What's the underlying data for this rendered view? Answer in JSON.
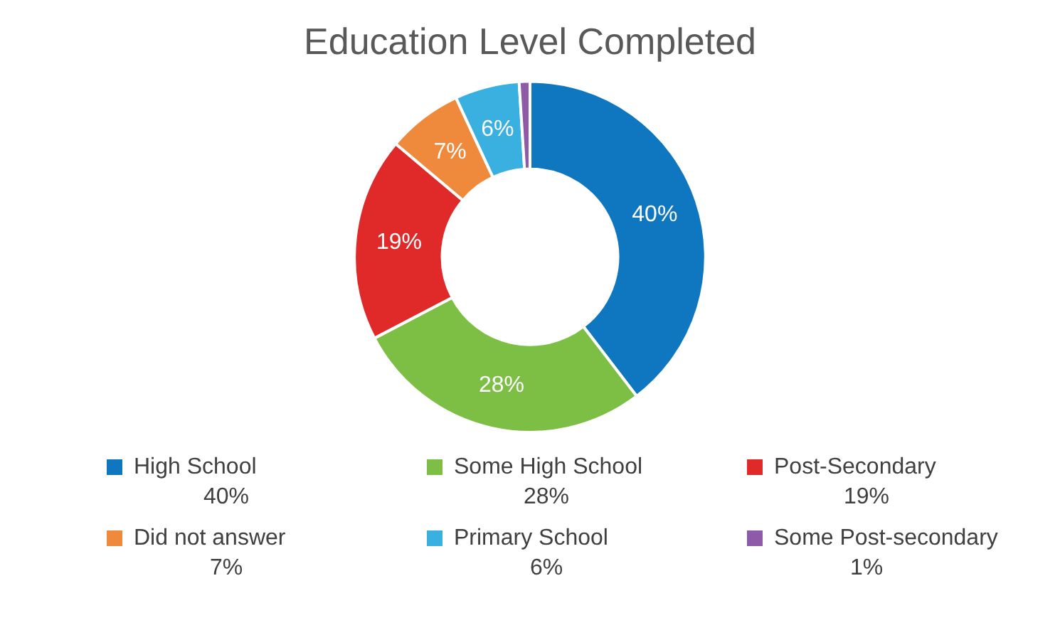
{
  "chart_data": {
    "type": "donut",
    "title": "Education Level Completed",
    "categories": [
      "High School",
      "Some High School",
      "Post-Secondary",
      "Did not answer",
      "Primary School",
      "Some Post-secondary"
    ],
    "values": [
      40,
      28,
      19,
      7,
      6,
      1
    ],
    "colors": [
      "#0f77c0",
      "#7dbf45",
      "#e02a2a",
      "#ef8a3c",
      "#3ab0e0",
      "#8e5ba8"
    ],
    "value_labels": [
      "40%",
      "28%",
      "19%",
      "7%",
      "6%",
      "1%"
    ],
    "legend": "bottom"
  }
}
